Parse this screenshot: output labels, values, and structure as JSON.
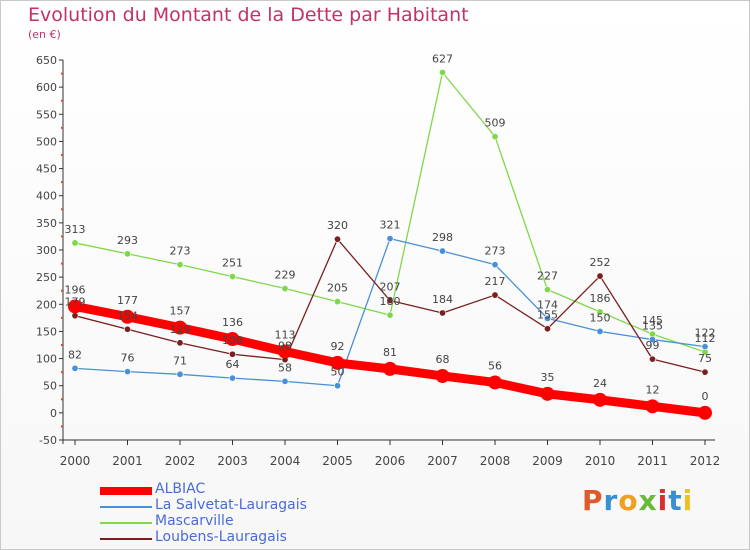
{
  "header": {
    "title": "Evolution du Montant de la Dette par Habitant",
    "subtitle": "(en €)"
  },
  "logo": {
    "text": "Proxiti",
    "colors": [
      "#e0592b",
      "#3a8fd0",
      "#f0a020",
      "#6aba3a",
      "#d8302d",
      "#3a8fd0",
      "#f0c020"
    ]
  },
  "chart_data": {
    "type": "line",
    "title": "Evolution du Montant de la Dette par Habitant",
    "ylabel": "(en €)",
    "x": [
      "2000",
      "2001",
      "2002",
      "2003",
      "2004",
      "2005",
      "2006",
      "2007",
      "2008",
      "2009",
      "2010",
      "2011",
      "2012"
    ],
    "ylim": [
      -50,
      650
    ],
    "yticks": [
      "-50",
      "0",
      "50",
      "100",
      "150",
      "200",
      "250",
      "300",
      "350",
      "400",
      "450",
      "500",
      "550",
      "600",
      "650"
    ],
    "grid": false,
    "legend_position": "bottom-left",
    "series": [
      {
        "name": "ALBIAC",
        "color": "#ff0000",
        "emphasis": true,
        "values": [
          196,
          177,
          157,
          136,
          113,
          92,
          81,
          68,
          56,
          35,
          24,
          12,
          0
        ]
      },
      {
        "name": "La Salvetat-Lauragais",
        "color": "#4a90d9",
        "values": [
          82,
          76,
          71,
          64,
          58,
          50,
          321,
          298,
          273,
          174,
          150,
          135,
          122
        ],
        "labels": [
          "82",
          "76",
          "71",
          "64",
          "58",
          "50",
          "321",
          "298",
          "273",
          "174",
          "150",
          "135",
          "122"
        ]
      },
      {
        "name": "Mascarville",
        "color": "#7fd84a",
        "values": [
          313,
          293,
          273,
          251,
          229,
          205,
          180,
          627,
          509,
          227,
          186,
          145,
          112
        ],
        "labels": [
          "313",
          "293",
          "273",
          "251",
          "229",
          "205",
          "180",
          "627",
          "509",
          "227",
          "186",
          "145",
          "112"
        ]
      },
      {
        "name": "Loubens-Lauragais",
        "color": "#7a1f1f",
        "values": [
          179,
          154,
          129,
          108,
          98,
          320,
          207,
          184,
          217,
          155,
          252,
          99,
          75
        ],
        "labels": [
          "179",
          "154",
          "129",
          "108",
          "98",
          "320",
          "207",
          "184",
          "217",
          "155",
          "252",
          "99",
          "75"
        ]
      }
    ],
    "albiac_labels": [
      "196",
      "177",
      "157",
      "136",
      "113",
      "92",
      "81",
      "68",
      "56",
      "35",
      "24",
      "12",
      "0"
    ]
  }
}
